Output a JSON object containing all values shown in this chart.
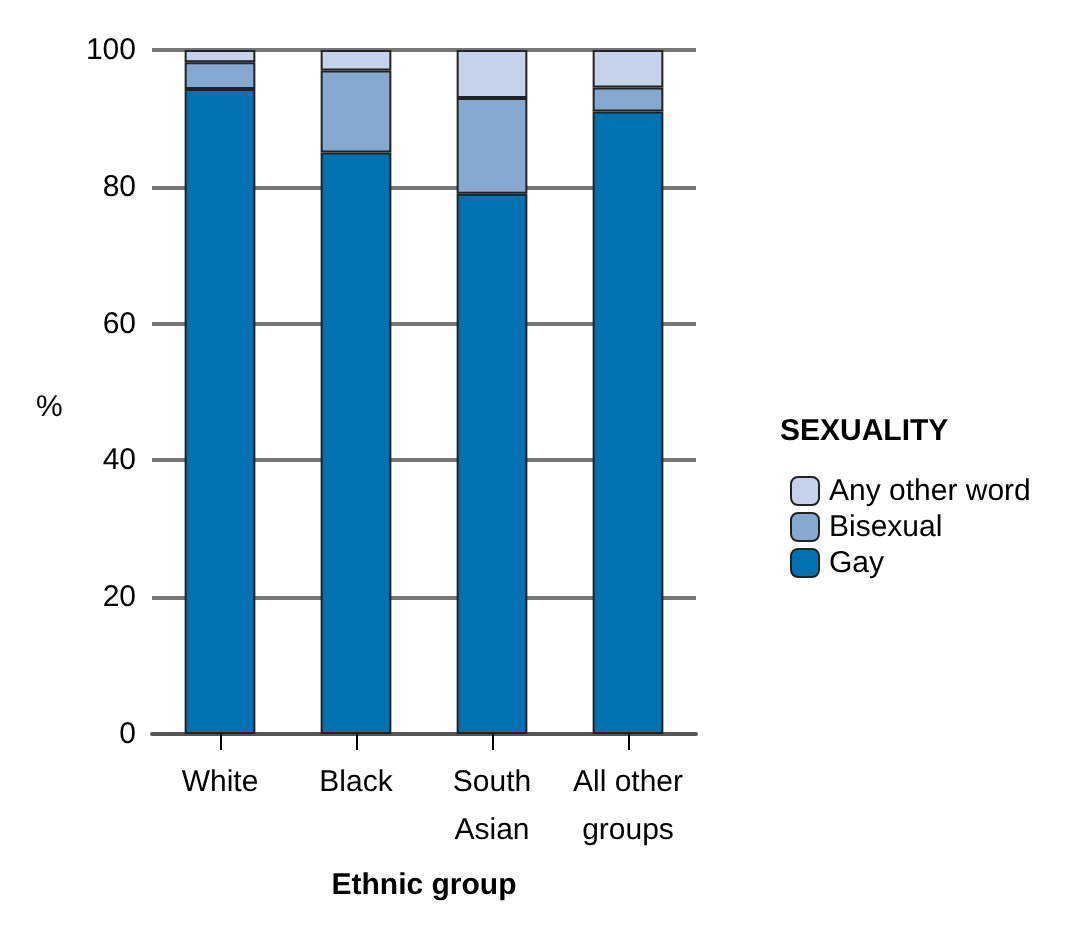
{
  "chart_data": {
    "type": "bar",
    "stacked": true,
    "xlabel": "Ethnic group",
    "ylabel": "%",
    "legend_title": "SEXUALITY",
    "categories": [
      "White",
      "Black",
      "South\nAsian",
      "All other\ngroups"
    ],
    "series": [
      {
        "name": "Gay",
        "color": "#0072b1",
        "values": [
          94.3,
          85,
          79,
          91
        ]
      },
      {
        "name": "Bisexual",
        "color": "#85a8d0",
        "values": [
          3.9,
          12,
          14,
          3.5
        ]
      },
      {
        "name": "Any other word",
        "color": "#c5d3ea",
        "values": [
          1.8,
          3,
          7,
          5.5
        ]
      }
    ],
    "ylim": [
      0,
      100
    ],
    "yticks": [
      0,
      20,
      40,
      60,
      80,
      100
    ],
    "grid": "y",
    "legend": "right"
  }
}
